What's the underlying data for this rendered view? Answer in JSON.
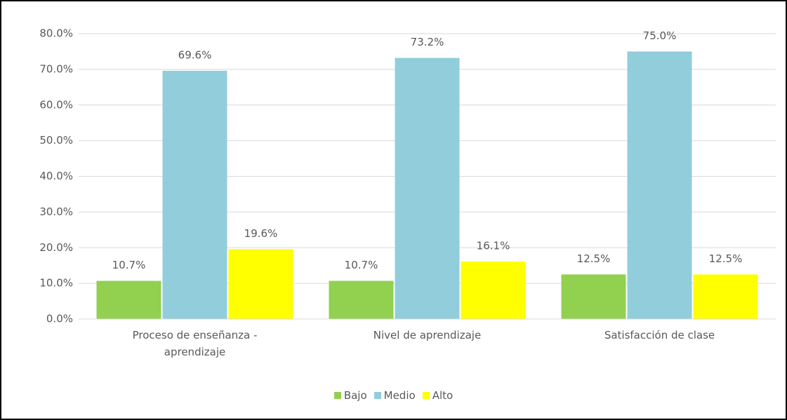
{
  "chart_data": {
    "type": "bar",
    "categories": [
      "Proceso de enseñanza - aprendizaje",
      "Nivel de aprendizaje",
      "Satisfacción de clase"
    ],
    "series": [
      {
        "name": "Bajo",
        "color": "#92d050",
        "values": [
          10.7,
          10.7,
          12.5
        ],
        "value_labels": [
          "10.7%",
          "10.7%",
          "12.5%"
        ]
      },
      {
        "name": "Medio",
        "color": "#92cddc",
        "values": [
          69.6,
          73.2,
          75.0
        ],
        "value_labels": [
          "69.6%",
          "73.2%",
          "75.0%"
        ]
      },
      {
        "name": "Alto",
        "color": "#ffff00",
        "values": [
          19.6,
          16.1,
          12.5
        ],
        "value_labels": [
          "19.6%",
          "16.1%",
          "12.5%"
        ]
      }
    ],
    "ylim": [
      0,
      80
    ],
    "yticks": [
      {
        "value": 0,
        "label": "0.0%"
      },
      {
        "value": 10,
        "label": "10.0%"
      },
      {
        "value": 20,
        "label": "20.0%"
      },
      {
        "value": 30,
        "label": "30.0%"
      },
      {
        "value": 40,
        "label": "40.0%"
      },
      {
        "value": 50,
        "label": "50.0%"
      },
      {
        "value": 60,
        "label": "60.0%"
      },
      {
        "value": 70,
        "label": "70.0%"
      },
      {
        "value": 80,
        "label": "80.0%"
      }
    ],
    "grid": true,
    "legend": "bottom"
  }
}
